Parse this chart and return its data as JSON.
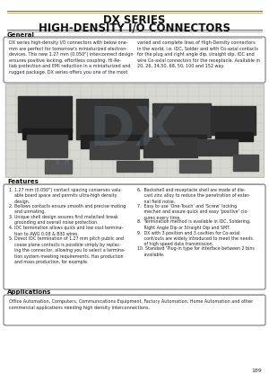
{
  "title_line1": "DX SERIES",
  "title_line2": "HIGH-DENSITY I/O CONNECTORS",
  "page_bg": "#ffffff",
  "box_border_color": "#555555",
  "page_number": "189",
  "general_header": "General",
  "gen_left": "DX series high-density I/O connectors with below one-\nmm are perfect for tomorrow's miniaturized electron-\ndevices. This new 1.27 mm (0.050\") interconnect design\nensures positive locking, effortless coupling, Hi-Re-\nliab protection and EMI reduction in a miniaturized and\nrugged package. DX series offers you one of the most",
  "gen_right": "varied and complete lines of High-Density connectors\nin the world, i.e. IDC, Solder and with Co-axial contacts\nfor the plug and right angle dip, straight dip, IDC and\nwire Co-axial connectors for the receptacle. Available in\n20, 26, 34,50, 68, 50, 100 and 152 way.",
  "features_header": "Features",
  "feat_left": [
    "1. 1.27 mm (0.050\") contact spacing conserves valu-\n    able board space and permits ultra-high density\n    design.",
    "2. Bellows contacts ensure smooth and precise mating\n    and unmating.",
    "3. Unique shell design assures first mate/last break\n    grounding and overall noise protection.",
    "4. IDC termination allows quick and low cost termina-\n    tion to AWG 0.08 & B30 wires.",
    "5. Direct IDC termination of 1.27 mm pitch public and\n    coaxe plane contacts is possible simply by replac-\n    ing the connector, allowing you to select a termina-\n    tion system meeting requirements. Has production\n    and mass production, for example."
  ],
  "feat_right": [
    "6.  Backshell and receptacle shell are made of die-\n     cast zinc alloy to reduce the penetration of exter-\n     nal field noise.",
    "7.  Easy to use 'One-Touch' and 'Screw' locking\n     mechan and assure quick and easy 'positive' clo-\n     sures every time.",
    "8.  Termination method is available in IDC, Soldering,\n     Right Angle Dip or Straight Dip and SMT.",
    "9.  DX with 3 position and 3 cavities for Co-axial\n     cont/outs are widely introduced to meet the needs\n     of high speed data transmission.",
    "10. Standard 'Plug-in type for interface between 2 bins\n     available."
  ],
  "applications_header": "Applications",
  "applications_text": "Office Automation, Computers, Communications Equipment, Factory Automation, Home Automation and other\ncommercial applications needing high density interconnections."
}
